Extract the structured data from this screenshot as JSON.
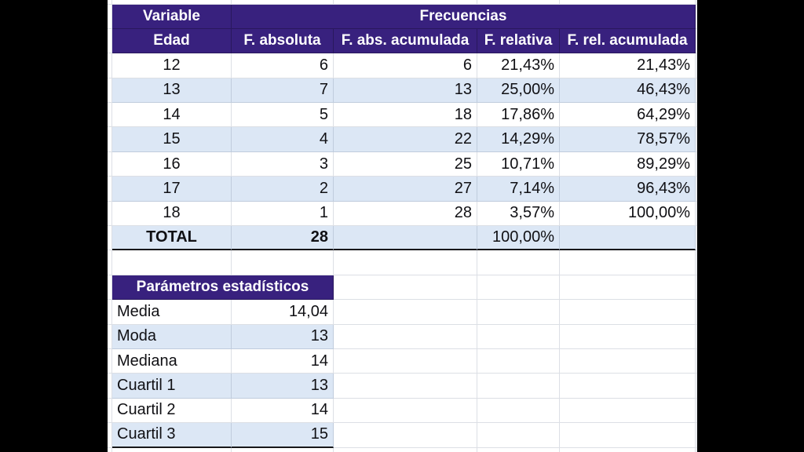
{
  "colors": {
    "header_bg": "#38217e",
    "header_text": "#ffffff",
    "band_blue": "#dce7f5",
    "gridline": "#e1e3e8",
    "letterbox": "#000000",
    "cell_text": "#101014"
  },
  "freq_table": {
    "variable_label": "Variable",
    "group_label": "Frecuencias",
    "edad_label": "Edad",
    "col_headers": [
      "F. absoluta",
      "F. abs. acumulada",
      "F. relativa",
      "F. rel. acumulada"
    ],
    "rows": [
      {
        "edad": "12",
        "f_absoluta": "6",
        "f_abs_acumulada": "6",
        "f_relativa": "21,43%",
        "f_rel_acumulada": "21,43%"
      },
      {
        "edad": "13",
        "f_absoluta": "7",
        "f_abs_acumulada": "13",
        "f_relativa": "25,00%",
        "f_rel_acumulada": "46,43%"
      },
      {
        "edad": "14",
        "f_absoluta": "5",
        "f_abs_acumulada": "18",
        "f_relativa": "17,86%",
        "f_rel_acumulada": "64,29%"
      },
      {
        "edad": "15",
        "f_absoluta": "4",
        "f_abs_acumulada": "22",
        "f_relativa": "14,29%",
        "f_rel_acumulada": "78,57%"
      },
      {
        "edad": "16",
        "f_absoluta": "3",
        "f_abs_acumulada": "25",
        "f_relativa": "10,71%",
        "f_rel_acumulada": "89,29%"
      },
      {
        "edad": "17",
        "f_absoluta": "2",
        "f_abs_acumulada": "27",
        "f_relativa": "7,14%",
        "f_rel_acumulada": "96,43%"
      },
      {
        "edad": "18",
        "f_absoluta": "1",
        "f_abs_acumulada": "28",
        "f_relativa": "3,57%",
        "f_rel_acumulada": "100,00%"
      }
    ],
    "total": {
      "label": "TOTAL",
      "f_absoluta": "28",
      "f_abs_acumulada": "",
      "f_relativa": "100,00%",
      "f_rel_acumulada": ""
    }
  },
  "params_table": {
    "title": "Parámetros estadísticos",
    "rows": [
      {
        "label": "Media",
        "value": "14,04"
      },
      {
        "label": "Moda",
        "value": "13"
      },
      {
        "label": "Mediana",
        "value": "14"
      },
      {
        "label": "Cuartil 1",
        "value": "13"
      },
      {
        "label": "Cuartil 2",
        "value": "14"
      },
      {
        "label": "Cuartil 3",
        "value": "15"
      }
    ]
  }
}
